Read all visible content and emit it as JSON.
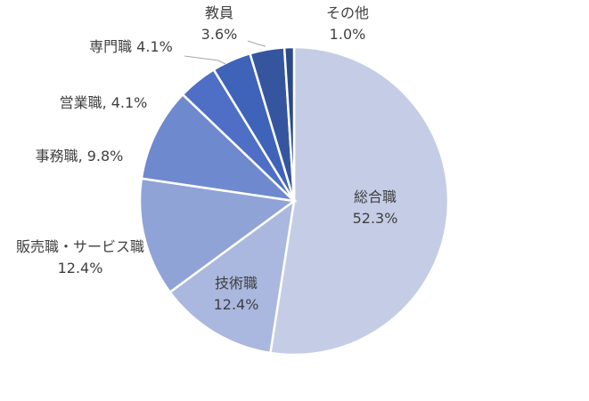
{
  "chart_data": {
    "type": "pie",
    "categories": [
      "総合職",
      "技術職",
      "販売職・サービス職",
      "事務職,",
      "営業職,",
      "専門職",
      "教員",
      "その他"
    ],
    "values": [
      52.3,
      12.4,
      12.4,
      9.8,
      4.1,
      4.1,
      3.6,
      1.0
    ],
    "value_labels": [
      "52.3%",
      "12.4%",
      "12.4%",
      "9.8%",
      "4.1%",
      "4.1%",
      "3.6%",
      "1.0%"
    ],
    "colors": [
      "#c5cde6",
      "#aab8df",
      "#8fa3d7",
      "#6f89cf",
      "#4f6fc6",
      "#3e63b8",
      "#35569f",
      "#2c4a86"
    ]
  }
}
